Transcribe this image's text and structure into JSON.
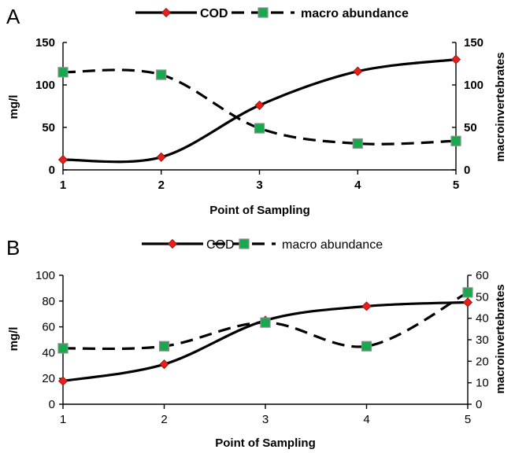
{
  "chart_data": [
    {
      "panel": "A",
      "type": "line",
      "x": [
        1,
        2,
        3,
        4,
        5
      ],
      "series": [
        {
          "name": "COD",
          "axis": "left",
          "style": "solid",
          "marker": "diamond",
          "color": "#e8201a",
          "values": [
            12,
            15,
            76,
            116,
            130
          ]
        },
        {
          "name": "macro abundance",
          "axis": "right",
          "style": "dashed",
          "marker": "square",
          "color": "#18a84e",
          "values": [
            115,
            112,
            49,
            31,
            34
          ]
        }
      ],
      "xlabel": "Point of Sampling",
      "ylabel": "mg/l",
      "y2label": "macroinvertebrates",
      "xlim": [
        1,
        5
      ],
      "ylim": [
        0,
        150
      ],
      "y2lim": [
        0,
        150
      ],
      "xticks": [
        1,
        2,
        3,
        4,
        5
      ],
      "yticks": [
        0,
        50,
        100,
        150
      ],
      "y2ticks": [
        0,
        50,
        100,
        150
      ],
      "legend": "top",
      "grid": false
    },
    {
      "panel": "B",
      "type": "line",
      "x": [
        1,
        2,
        3,
        4,
        5
      ],
      "series": [
        {
          "name": "COD",
          "axis": "left",
          "style": "solid",
          "marker": "diamond",
          "color": "#e8201a",
          "values": [
            18,
            31,
            65,
            76,
            79
          ]
        },
        {
          "name": "macro abundance",
          "axis": "right",
          "style": "dashed",
          "marker": "square",
          "color": "#18a84e",
          "values": [
            26,
            27,
            38,
            27,
            52
          ]
        }
      ],
      "xlabel": "Point of Sampling",
      "ylabel": "mg/l",
      "y2label": "macroinvertebrates",
      "xlim": [
        1,
        5
      ],
      "ylim": [
        0,
        100
      ],
      "y2lim": [
        0,
        60
      ],
      "xticks": [
        1,
        2,
        3,
        4,
        5
      ],
      "yticks": [
        0,
        20,
        40,
        60,
        80,
        100
      ],
      "y2ticks": [
        0,
        10,
        20,
        30,
        40,
        50,
        60
      ],
      "legend": "top",
      "grid": false
    }
  ]
}
